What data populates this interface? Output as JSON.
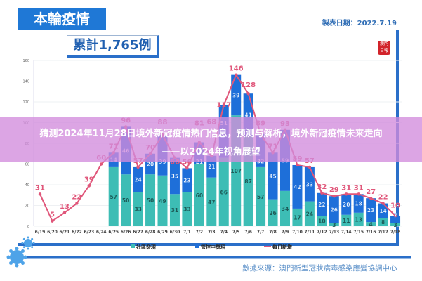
{
  "header": {
    "tab_title": "本輪疫情",
    "made_date": "製表日期：2022.7.19",
    "total": "累計1,765例",
    "stamp": "澳門日報"
  },
  "overlay": {
    "line1": "猜测2024年11月28日境外新冠疫情热门信息，预测与解析，境外新冠疫情未来走向",
    "line2": "——以2024年视角展望"
  },
  "source": "數據來源：澳門新型冠狀病毒感染應變協調中心",
  "colors": {
    "community": "#3dbdb5",
    "controlled": "#1e6fd9",
    "daily": "#e0567a",
    "accent": "#1f78d6"
  },
  "chart_data": {
    "type": "bar",
    "stacked": true,
    "categories": [
      "6/19",
      "6/20",
      "6/21",
      "6/22",
      "6/23",
      "6/24",
      "6/25",
      "6/26",
      "6/27",
      "6/28",
      "6/29",
      "6/30",
      "7/1",
      "7/2",
      "7/3",
      "7/4",
      "7/5",
      "7/6",
      "7/7",
      "7/8",
      "7/9",
      "7/10",
      "7/11",
      "7/12",
      "7/13",
      "7/14",
      "7/15",
      "7/16",
      "7/17",
      "7/18"
    ],
    "ylim": [
      0,
      160
    ],
    "yticks": [
      0,
      20,
      40,
      60,
      80,
      100,
      120,
      140,
      160
    ],
    "grid": true,
    "legend_position": "bottom",
    "series": [
      {
        "name": "社區發現",
        "type": "bar",
        "values": [
          null,
          null,
          null,
          null,
          null,
          null,
          57,
          50,
          33,
          50,
          49,
          31,
          33,
          60,
          47,
          66,
          107,
          87,
          57,
          26,
          34,
          17,
          24,
          10,
          3,
          11,
          13,
          4,
          8,
          3
        ]
      },
      {
        "name": "管控中發現",
        "type": "bar",
        "values": [
          null,
          null,
          null,
          null,
          null,
          null,
          14,
          46,
          24,
          20,
          39,
          35,
          23,
          21,
          21,
          51,
          39,
          41,
          32,
          45,
          59,
          42,
          33,
          22,
          26,
          20,
          18,
          23,
          14,
          7
        ]
      },
      {
        "name": "每日新增",
        "type": "line",
        "values": [
          31,
          5,
          13,
          22,
          39,
          60,
          71,
          96,
          57,
          70,
          88,
          66,
          56,
          81,
          68,
          117,
          146,
          128,
          89,
          71,
          93,
          59,
          57,
          32,
          29,
          31,
          31,
          27,
          22,
          10
        ]
      }
    ]
  }
}
